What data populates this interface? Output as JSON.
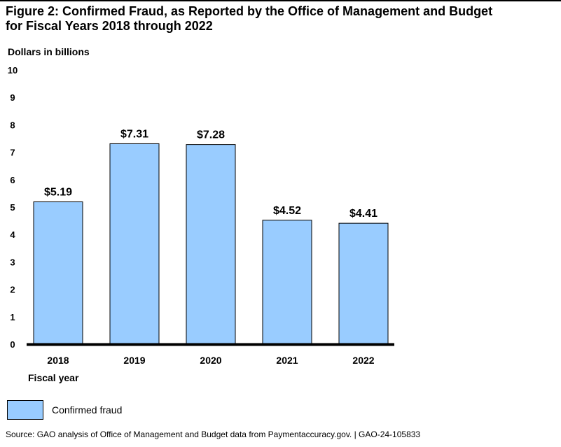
{
  "figure": {
    "title_line1": "Figure 2: Confirmed Fraud, as Reported by the Office of Management and Budget",
    "title_line2": "for Fiscal Years 2018 through 2022",
    "source": "Source: GAO analysis of Office of Management and Budget data from Paymentaccuracy.gov.  |  GAO-24-105833"
  },
  "chart_data": {
    "type": "bar",
    "title": "Figure 2: Confirmed Fraud, as Reported by the Office of Management and Budget for Fiscal Years 2018 through 2022",
    "ylabel": "Dollars in billions",
    "xlabel": "Fiscal year",
    "ylim": [
      0,
      10
    ],
    "yticks": [
      "0",
      "1",
      "2",
      "3",
      "4",
      "5",
      "6",
      "7",
      "8",
      "9",
      "10"
    ],
    "categories": [
      "2018",
      "2019",
      "2020",
      "2021",
      "2022"
    ],
    "series": [
      {
        "name": "Confirmed fraud",
        "values": [
          5.19,
          7.31,
          7.28,
          4.52,
          4.41
        ],
        "data_labels": [
          "$5.19",
          "$7.31",
          "$7.28",
          "$4.52",
          "$4.41"
        ],
        "color": "#99ccff"
      }
    ],
    "grid": false,
    "legend_position": "bottom-left"
  }
}
